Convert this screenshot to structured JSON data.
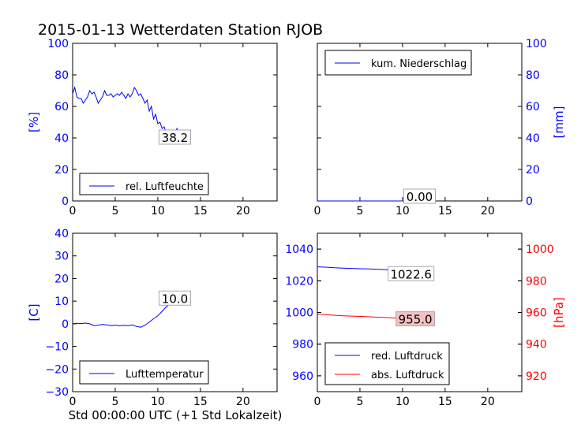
{
  "title": "2015-01-13 Wetterdaten Station RJOB",
  "xlabel": "Std 00:00:00 UTC (+1 Std Lokalzeit)",
  "colors": {
    "blue": "#0000ff",
    "red": "#ff0000",
    "black": "#000000"
  },
  "chart_data": [
    {
      "id": "humidity",
      "type": "line",
      "ylabel": "[%]",
      "xlim": [
        0,
        24
      ],
      "ylim": [
        0,
        100
      ],
      "xticks": [
        "0",
        "5",
        "10",
        "15",
        "20"
      ],
      "yticks": [
        "0",
        "20",
        "40",
        "60",
        "80",
        "100"
      ],
      "legend_position": "bottom-left",
      "series": [
        {
          "name": "rel. Luftfeuchte",
          "x": [
            0,
            0.25,
            0.5,
            0.75,
            1,
            1.25,
            1.5,
            1.75,
            2,
            2.25,
            2.5,
            2.75,
            3,
            3.25,
            3.5,
            3.75,
            4,
            4.25,
            4.5,
            4.75,
            5,
            5.25,
            5.5,
            5.75,
            6,
            6.25,
            6.5,
            6.75,
            7,
            7.25,
            7.5,
            7.75,
            8,
            8.25,
            8.5,
            8.75,
            9,
            9.25,
            9.5,
            9.75,
            10,
            10.25,
            10.5,
            10.75,
            11,
            11.25,
            11.5,
            11.75,
            12,
            12.25,
            12.5,
            12.75,
            13,
            13.25,
            13.5,
            13.75
          ],
          "y": [
            68,
            72,
            66,
            65,
            65,
            62,
            64,
            66,
            70,
            68,
            69,
            66,
            62,
            64,
            66,
            70,
            67,
            67,
            68,
            66,
            67,
            68,
            67,
            69,
            67,
            65,
            68,
            66,
            68,
            72,
            70,
            67,
            68,
            65,
            62,
            64,
            57,
            60,
            52,
            55,
            49,
            50,
            46,
            47,
            43,
            45,
            42,
            44,
            43,
            46,
            41,
            44,
            40,
            43,
            40,
            38.2
          ]
        }
      ],
      "value_label": "38.2",
      "value_label_x": 12,
      "value_label_y": 40
    },
    {
      "id": "precipitation",
      "type": "line",
      "ylabel": "[mm]",
      "xlim": [
        0,
        24
      ],
      "ylim": [
        0,
        100
      ],
      "xticks": [
        "0",
        "5",
        "10",
        "15",
        "20"
      ],
      "yticks": [
        "0",
        "20",
        "40",
        "60",
        "80",
        "100"
      ],
      "legend_position": "top-left",
      "series": [
        {
          "name": "kum. Niederschlag",
          "x": [
            0,
            13.75
          ],
          "y": [
            0,
            0
          ]
        }
      ],
      "value_label": "0.00",
      "value_label_x": 12,
      "value_label_y": 2.5
    },
    {
      "id": "temperature",
      "type": "line",
      "ylabel": "[C]",
      "xlim": [
        0,
        24
      ],
      "ylim": [
        -30,
        40
      ],
      "xticks": [
        "0",
        "5",
        "10",
        "15",
        "20"
      ],
      "yticks": [
        "−30",
        "−20",
        "−10",
        "0",
        "10",
        "20",
        "30",
        "40"
      ],
      "legend_position": "bottom-left",
      "series": [
        {
          "name": "Lufttemperatur",
          "x": [
            0,
            0.5,
            1,
            1.5,
            2,
            2.5,
            3,
            3.5,
            4,
            4.5,
            5,
            5.5,
            6,
            6.5,
            7,
            7.5,
            8,
            8.5,
            9,
            9.5,
            10,
            10.5,
            11,
            11.5,
            12,
            12.5,
            13,
            13.5,
            13.75
          ],
          "y": [
            0,
            0.2,
            0.1,
            0.3,
            0,
            -0.8,
            -0.6,
            -0.3,
            -0.5,
            -0.8,
            -0.6,
            -0.9,
            -0.7,
            -0.9,
            -0.5,
            -1.2,
            -1.5,
            -0.6,
            0.8,
            2.2,
            3.5,
            5.5,
            7.5,
            9,
            10.5,
            11,
            10.8,
            11,
            10
          ]
        }
      ],
      "value_label": "10.0",
      "value_label_x": 12,
      "value_label_y": 11
    },
    {
      "id": "pressure",
      "type": "line",
      "ylim_left": [
        950,
        1050
      ],
      "ylim_right": [
        910,
        1010
      ],
      "ylabel_right": "[hPa]",
      "xlim": [
        0,
        24
      ],
      "xticks": [
        "0",
        "5",
        "10",
        "15",
        "20"
      ],
      "yticks_left": [
        "960",
        "980",
        "1000",
        "1020",
        "1040"
      ],
      "yticks_right": [
        "920",
        "940",
        "960",
        "980",
        "1000"
      ],
      "legend_position": "bottom-left",
      "series": [
        {
          "name": "red. Luftdruck",
          "axis": "left",
          "x": [
            0,
            1,
            2,
            3,
            4,
            5,
            6,
            7,
            8,
            9,
            10,
            11,
            12,
            13,
            13.75
          ],
          "y": [
            1028.8,
            1028.6,
            1028.2,
            1028.0,
            1027.8,
            1027.6,
            1027.5,
            1027.3,
            1027.0,
            1026.4,
            1025.6,
            1024.8,
            1024.0,
            1023.3,
            1022.6
          ]
        },
        {
          "name": "abs. Luftdruck",
          "axis": "right",
          "x": [
            0,
            1,
            2,
            3,
            4,
            5,
            6,
            7,
            8,
            9,
            10,
            11,
            12,
            13,
            13.75
          ],
          "y": [
            959.0,
            958.6,
            958.2,
            957.9,
            957.7,
            957.5,
            957.3,
            957.0,
            956.8,
            956.5,
            956.2,
            955.9,
            955.6,
            955.3,
            955.0
          ]
        }
      ],
      "value_labels": [
        {
          "text": "1022.6",
          "axis": "left",
          "x": 11,
          "y": 1024
        },
        {
          "text": "955.0",
          "axis": "right",
          "x": 11.5,
          "y": 955.5
        }
      ]
    }
  ]
}
